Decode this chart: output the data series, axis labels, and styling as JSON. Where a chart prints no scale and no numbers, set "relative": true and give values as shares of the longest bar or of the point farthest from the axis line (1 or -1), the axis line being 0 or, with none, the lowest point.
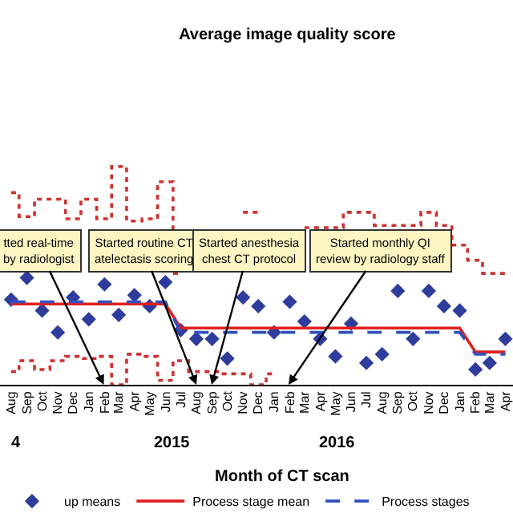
{
  "chart_data": {
    "type": "scatter",
    "title": "Average image quality score",
    "xlabel": "Month of CT scan",
    "relative": true,
    "legend": "bottom",
    "grid": false,
    "x": [
      "2014-08",
      "2014-09",
      "2014-10",
      "2014-11",
      "2014-12",
      "2015-01",
      "2015-02",
      "2015-03",
      "2015-04",
      "2015-05",
      "2015-06",
      "2015-07",
      "2015-08",
      "2015-09",
      "2015-10",
      "2015-11",
      "2015-12",
      "2016-01",
      "2016-02",
      "2016-03",
      "2016-04",
      "2016-05",
      "2016-06",
      "2016-07",
      "2016-08",
      "2016-09",
      "2016-10",
      "2016-11",
      "2016-12",
      "2017-01",
      "2017-02",
      "2017-03",
      "2017-04"
    ],
    "xlim": [
      "2014-07-10",
      "2017-04-16"
    ],
    "xticks": [
      {
        "value": "2014-08",
        "label": "Aug"
      },
      {
        "value": "2014-09",
        "label": "Sep"
      },
      {
        "value": "2014-10",
        "label": "Oct"
      },
      {
        "value": "2014-11",
        "label": "Nov"
      },
      {
        "value": "2014-12",
        "label": "Dec"
      },
      {
        "value": "2015-01",
        "label": "Jan"
      },
      {
        "value": "2015-02",
        "label": "Feb"
      },
      {
        "value": "2015-03",
        "label": "Mar"
      },
      {
        "value": "2015-04",
        "label": "Apr"
      },
      {
        "value": "2015-05",
        "label": "May"
      },
      {
        "value": "2015-06",
        "label": "Jun"
      },
      {
        "value": "2015-07",
        "label": "Jul"
      },
      {
        "value": "2015-08",
        "label": "Aug"
      },
      {
        "value": "2015-09",
        "label": "Sep"
      },
      {
        "value": "2015-10",
        "label": "Oct"
      },
      {
        "value": "2015-11",
        "label": "Nov"
      },
      {
        "value": "2015-12",
        "label": "Dec"
      },
      {
        "value": "2016-01",
        "label": "Jan"
      },
      {
        "value": "2016-02",
        "label": "Feb"
      },
      {
        "value": "2016-03",
        "label": "Mar"
      },
      {
        "value": "2016-04",
        "label": "Apr"
      },
      {
        "value": "2016-05",
        "label": "May"
      },
      {
        "value": "2016-06",
        "label": "Jun"
      },
      {
        "value": "2016-07",
        "label": "Jul"
      },
      {
        "value": "2016-08",
        "label": "Aug"
      },
      {
        "value": "2016-09",
        "label": "Sep"
      },
      {
        "value": "2016-10",
        "label": "Oct"
      },
      {
        "value": "2016-11",
        "label": "Nov"
      },
      {
        "value": "2016-12",
        "label": "Dec"
      },
      {
        "value": "2017-01",
        "label": "Jan"
      },
      {
        "value": "2017-02",
        "label": "Feb"
      },
      {
        "value": "2017-03",
        "label": "Mar"
      },
      {
        "value": "2017-04",
        "label": "Apr"
      }
    ],
    "series": [
      {
        "name": "up means",
        "color": "#2e3d9c",
        "marker": "diamond",
        "values": [
          0.39,
          0.49,
          0.34,
          0.24,
          0.4,
          0.3,
          0.46,
          0.32,
          0.41,
          0.36,
          0.47,
          0.25,
          0.21,
          0.21,
          0.12,
          0.4,
          0.36,
          0.24,
          0.38,
          0.29,
          0.21,
          0.13,
          0.28,
          0.1,
          0.14,
          0.43,
          0.21,
          0.43,
          0.36,
          0.34,
          0.07,
          0.1,
          0.21
        ]
      },
      {
        "type": "step",
        "color": "#d03030",
        "line_style": "dotted",
        "marker": "none",
        "values": [
          0.88,
          0.77,
          0.85,
          0.85,
          0.76,
          0.85,
          0.76,
          1.0,
          0.75,
          0.76,
          0.93,
          0.51,
          null,
          null,
          null,
          0.79,
          0.79,
          null,
          null,
          0.72,
          0.72,
          0.72,
          0.79,
          0.79,
          0.73,
          0.73,
          0.73,
          0.79,
          0.73,
          0.64,
          0.57,
          0.51,
          0.51
        ]
      },
      {
        "type": "step",
        "color": "#d03030",
        "line_style": "dotted",
        "marker": "none",
        "values": [
          0.06,
          0.11,
          0.07,
          0.11,
          0.13,
          0.12,
          0.13,
          0.0,
          0.14,
          0.13,
          0.02,
          0.11,
          0.06,
          0.06,
          0.05,
          0.05,
          0.0,
          0.05,
          null,
          null,
          null,
          null,
          null,
          null,
          null,
          null,
          null,
          null,
          null,
          null,
          null,
          null,
          null
        ]
      },
      {
        "type": "line",
        "name": "Process stage mean",
        "color": "#e02020",
        "line_style": "solid",
        "marker": "none",
        "values": [
          0.37,
          0.37,
          0.37,
          0.37,
          0.37,
          0.37,
          0.37,
          0.37,
          0.37,
          0.37,
          0.37,
          0.26,
          0.26,
          0.26,
          0.26,
          0.26,
          0.26,
          0.26,
          0.26,
          0.26,
          0.26,
          0.26,
          0.26,
          0.26,
          0.26,
          0.26,
          0.26,
          0.26,
          0.26,
          0.26,
          0.15,
          0.15,
          0.15
        ]
      },
      {
        "type": "line",
        "name": "Process stages",
        "color": "#3050c0",
        "line_style": "dashed",
        "marker": "none",
        "values": [
          0.38,
          0.38,
          0.38,
          0.38,
          0.38,
          0.38,
          0.38,
          0.38,
          0.38,
          0.38,
          0.38,
          0.24,
          0.24,
          0.24,
          0.24,
          0.24,
          0.24,
          0.24,
          0.24,
          0.24,
          0.24,
          0.24,
          0.24,
          0.24,
          0.24,
          0.24,
          0.24,
          0.24,
          0.24,
          0.24,
          0.14,
          0.14,
          0.14
        ]
      }
    ],
    "annotations": [
      "tted real-time\nby radiologist",
      "Started routine CT\natelectasis scoring",
      "Started anesthesia\nchest CT protocol",
      "Started monthly QI\nreview by radiology staff",
      "4",
      "2015",
      "2016"
    ]
  }
}
